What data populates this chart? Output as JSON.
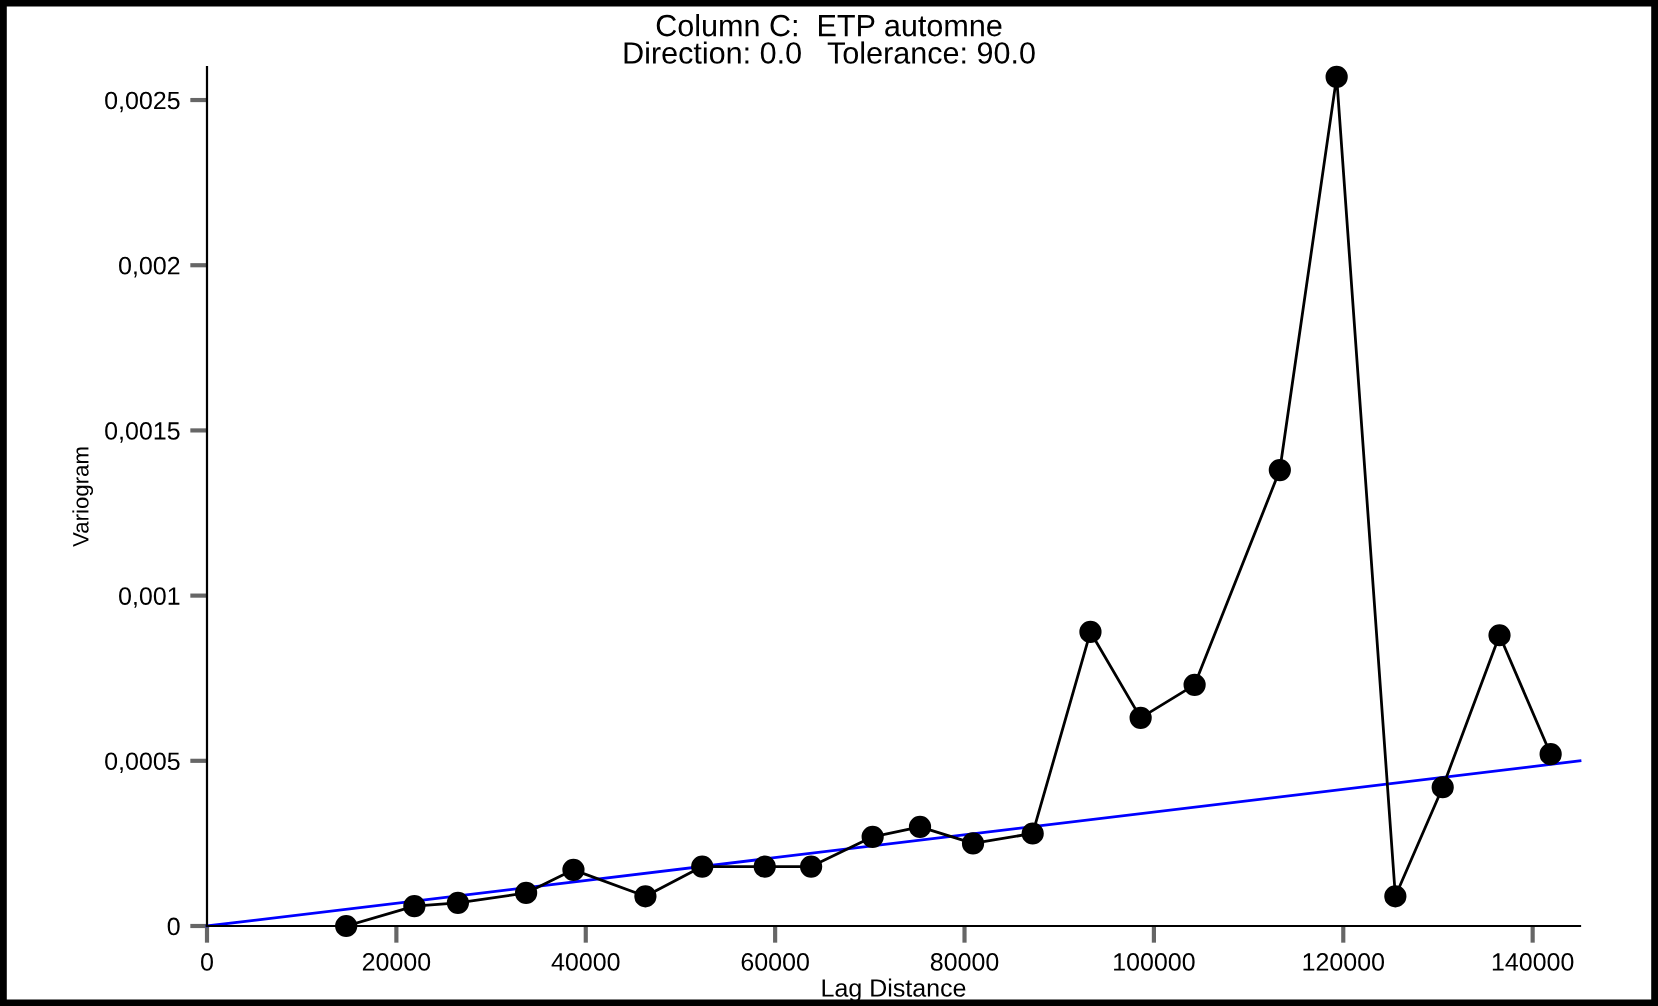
{
  "chart_data": {
    "type": "line",
    "title": "Column C:  ETP automne\nDirection: 0.0   Tolerance: 90.0",
    "xlabel": "Lag Distance",
    "ylabel": "Variogram",
    "x": [
      14700,
      21900,
      26500,
      33700,
      38700,
      46300,
      52300,
      58900,
      63800,
      70300,
      75300,
      80900,
      87200,
      93300,
      98600,
      104300,
      113300,
      119300,
      125500,
      130500,
      136500,
      141900
    ],
    "series": [
      {
        "color": "#000000",
        "marker": "circle",
        "values": [
          0,
          6e-05,
          7e-05,
          0.0001,
          0.00017,
          9e-05,
          0.00018,
          0.00018,
          0.00018,
          0.00027,
          0.0003,
          0.00025,
          0.00028,
          0.00089,
          0.00063,
          0.00073,
          0.00138,
          0.00257,
          9e-05,
          0.00042,
          0.00088,
          0.00052
        ]
      },
      {
        "type": "line",
        "color": "#0000ff",
        "marker": "none",
        "x": [
          0,
          145000
        ],
        "values": [
          0,
          0.0005
        ]
      }
    ],
    "xlim": [
      0,
      145000
    ],
    "xticks": [
      0,
      20000,
      40000,
      60000,
      80000,
      100000,
      120000,
      140000
    ],
    "ylim": [
      0,
      0.0026
    ],
    "yticks": [
      {
        "value": 0,
        "label": "0"
      },
      {
        "value": 0.0005,
        "label": "0,0005"
      },
      {
        "value": 0.001,
        "label": "0,001"
      },
      {
        "value": 0.0015,
        "label": "0,0015"
      },
      {
        "value": 0.002,
        "label": "0,002"
      },
      {
        "value": 0.0025,
        "label": "0,0025"
      }
    ],
    "grid": false,
    "legend": false
  }
}
